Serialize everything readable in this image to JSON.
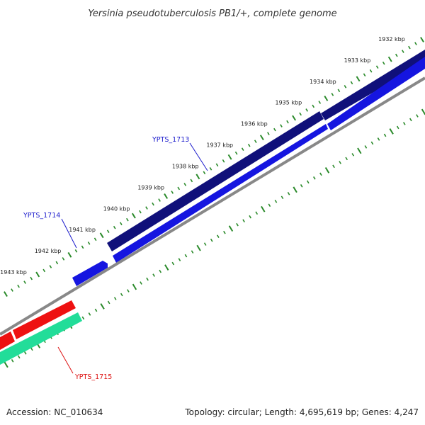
{
  "title": "Yersinia pseudotuberculosis PB1/+, complete genome",
  "footer": {
    "accession": "Accession: NC_010634",
    "summary": "Topology: circular; Length: 4,695,619 bp; Genes: 4,247"
  },
  "colors": {
    "ticks": "#2a8a2a",
    "backbone": "#888888",
    "forward_track": "#10107a",
    "reverse_track": "#1515e0",
    "rna_track_red": "#ee1111",
    "rna_track_green": "#22dd99",
    "blue_label": "#1a1acc",
    "red_label": "#dd1111"
  },
  "map": {
    "ticks": [
      {
        "kbp": 1932,
        "label": "1932 kbp"
      },
      {
        "kbp": 1933,
        "label": "1933 kbp"
      },
      {
        "kbp": 1934,
        "label": "1934 kbp"
      },
      {
        "kbp": 1935,
        "label": "1935 kbp"
      },
      {
        "kbp": 1936,
        "label": "1936 kbp"
      },
      {
        "kbp": 1937,
        "label": "1937 kbp"
      },
      {
        "kbp": 1938,
        "label": "1938 kbp"
      },
      {
        "kbp": 1939,
        "label": "1939 kbp"
      },
      {
        "kbp": 1940,
        "label": "1940 kbp"
      },
      {
        "kbp": 1941,
        "label": "1941 kbp"
      },
      {
        "kbp": 1942,
        "label": "1942 kbp"
      },
      {
        "kbp": 1943,
        "label": "1943 kbp"
      }
    ],
    "genes": [
      {
        "label": "YPTS_1713",
        "color": "#1a1acc"
      },
      {
        "label": "YPTS_1714",
        "color": "#1a1acc"
      },
      {
        "label": "YPTS_1715",
        "color": "#dd1111"
      }
    ]
  }
}
